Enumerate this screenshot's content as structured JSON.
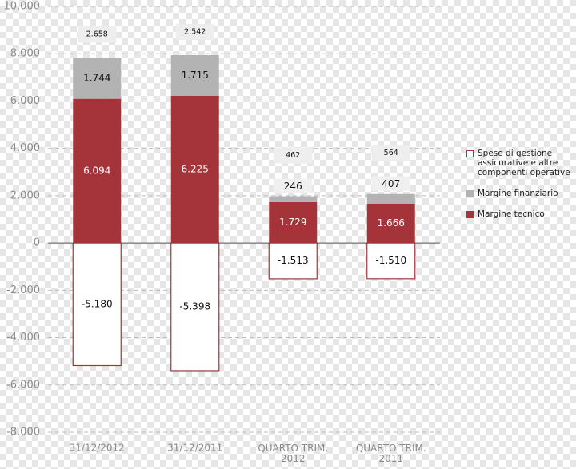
{
  "chart_data": {
    "type": "stacked-bar",
    "categories": [
      "31/12/2012",
      "31/12/2011",
      "QUARTO TRIM. 2012",
      "QUARTO TRIM. 2011"
    ],
    "series": [
      {
        "name": "Spese di gestione assicurative e altre componenti operative",
        "color": "#ffffff",
        "border": "#a4343a",
        "values": [
          -5180,
          -5398,
          -1513,
          -1510
        ],
        "value_labels": [
          "-5.180",
          "-5.398",
          "-1.513",
          "-1.510"
        ]
      },
      {
        "name": "Margine finanziario",
        "color": "#b3b3b3",
        "values": [
          1744,
          1715,
          246,
          407
        ],
        "value_labels": [
          "1.744",
          "1.715",
          "246",
          "407"
        ]
      },
      {
        "name": "Margine tecnico",
        "color": "#a4343a",
        "values": [
          6094,
          6225,
          1729,
          1666
        ],
        "value_labels": [
          "6.094",
          "6.225",
          "1.729",
          "1.666"
        ]
      }
    ],
    "totals": {
      "values": [
        2658,
        2542,
        462,
        564
      ],
      "value_labels": [
        "2.658",
        "2.542",
        "462",
        "564"
      ]
    },
    "ylim": [
      -8000,
      10000
    ],
    "yticks": [
      {
        "value": -8000,
        "label": "-8.000"
      },
      {
        "value": -6000,
        "label": "-6.000"
      },
      {
        "value": -4000,
        "label": "-4.000"
      },
      {
        "value": -2000,
        "label": "-2.000"
      },
      0,
      {
        "value": 2000,
        "label": "2.000"
      },
      {
        "value": 4000,
        "label": "4.000"
      },
      {
        "value": 6000,
        "label": "6.000"
      },
      {
        "value": 8000,
        "label": "8.000"
      },
      {
        "value": 10000,
        "label": "10.000"
      }
    ],
    "grid": true,
    "legend": "right"
  }
}
